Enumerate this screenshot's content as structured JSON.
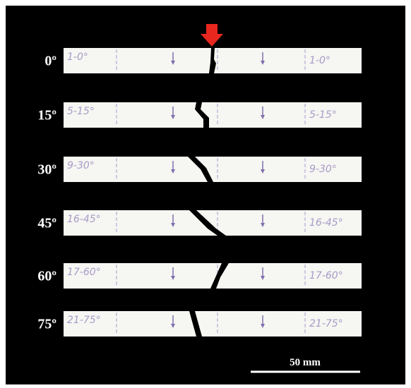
{
  "specimens": [
    {
      "angle": "0º",
      "left": "1-0°",
      "right": "1-0°"
    },
    {
      "angle": "15º",
      "left": "5-15°",
      "right": "5-15°"
    },
    {
      "angle": "30º",
      "left": "9-30°",
      "right": "9-30°"
    },
    {
      "angle": "45º",
      "left": "16-45°",
      "right": "16-45°"
    },
    {
      "angle": "60º",
      "left": "17-60°",
      "right": "17-60°"
    },
    {
      "angle": "75º",
      "left": "21-75°",
      "right": "21-75°"
    }
  ],
  "scale_bar": "50 mm"
}
